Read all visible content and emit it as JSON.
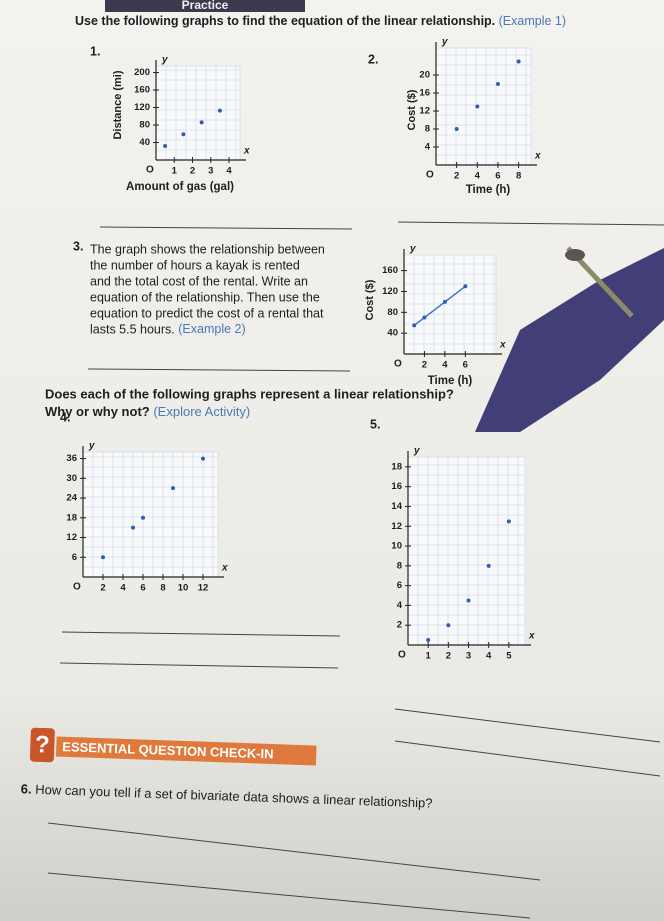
{
  "header": "Practice",
  "instructions": {
    "text": "Use the following graphs to find the equation of the linear relationship.",
    "ref": "(Example 1)"
  },
  "axis_letters": {
    "x": "x",
    "y": "y",
    "origin": "O"
  },
  "graphs": [
    {
      "number": "1.",
      "xlabel": "Amount of gas (gal)",
      "ylabel": "Distance (mi)",
      "xlim": [
        0,
        4.6
      ],
      "ylim": [
        0,
        215
      ],
      "xticks": [
        1,
        2,
        3,
        4
      ],
      "yticks": [
        40,
        80,
        120,
        160,
        200
      ],
      "x": [
        0.5,
        1.5,
        2.5,
        3.5
      ],
      "y": [
        32,
        59,
        86,
        113
      ],
      "line": false
    },
    {
      "number": "2.",
      "xlabel": "Time (h)",
      "ylabel": "Cost ($)",
      "xlim": [
        0,
        9.2
      ],
      "ylim": [
        0,
        26
      ],
      "xticks": [
        2,
        4,
        6,
        8
      ],
      "yticks": [
        4,
        8,
        12,
        16,
        20
      ],
      "x": [
        2,
        4,
        6,
        8
      ],
      "y": [
        8,
        13,
        18,
        23
      ],
      "line": false
    },
    {
      "number": "3.",
      "xlabel": "Time (h)",
      "ylabel": "Cost ($)",
      "xlim": [
        0,
        9
      ],
      "ylim": [
        0,
        190
      ],
      "xticks": [
        2,
        4,
        6
      ],
      "yticks": [
        40,
        80,
        120,
        160
      ],
      "x": [
        1,
        2,
        4,
        6
      ],
      "y": [
        55,
        70,
        100,
        130
      ],
      "line": true
    },
    {
      "number": "4.",
      "xlim": [
        0,
        13.5
      ],
      "ylim": [
        0,
        38
      ],
      "xticks": [
        2,
        4,
        6,
        8,
        10,
        12
      ],
      "yticks": [
        6,
        12,
        18,
        24,
        30,
        36
      ],
      "x": [
        2,
        5,
        6,
        9,
        12
      ],
      "y": [
        6,
        15,
        18,
        27,
        36
      ],
      "line": false
    },
    {
      "number": "5.",
      "xlim": [
        0,
        5.8
      ],
      "ylim": [
        0,
        19
      ],
      "xticks": [
        1,
        2,
        3,
        4,
        5
      ],
      "yticks": [
        2,
        4,
        6,
        8,
        10,
        12,
        14,
        16,
        18
      ],
      "x": [
        1,
        2,
        3,
        4,
        5
      ],
      "y": [
        0.5,
        2,
        4.5,
        8,
        12.5
      ],
      "line": false
    }
  ],
  "problem3": {
    "lines": [
      "The graph shows the relationship between",
      "the number of hours a kayak is rented",
      "and the total cost of the rental. Write an",
      "equation of the relationship. Then use the",
      "equation to predict the cost of a rental that",
      "lasts 5.5 hours."
    ],
    "ref": "(Example 2)"
  },
  "section": {
    "question": "Does each of the following graphs represent a linear relationship?",
    "question2": "Why or why not?",
    "ref": "(Explore Activity)"
  },
  "essential": {
    "icon": "?",
    "title": "ESSENTIAL QUESTION CHECK-IN",
    "number": "6.",
    "question": "How can you tell if a set of bivariate data shows a linear relationship?"
  }
}
